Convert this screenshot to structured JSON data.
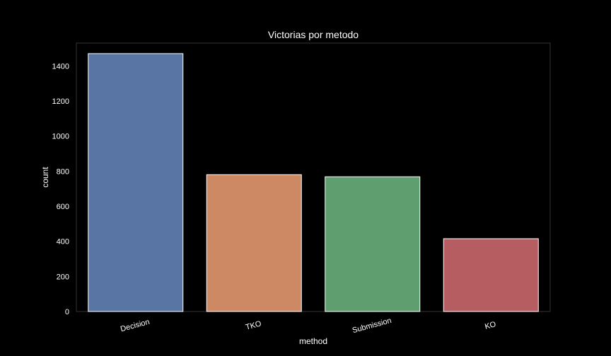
{
  "chart_data": {
    "type": "bar",
    "title": "Victorias por metodo",
    "xlabel": "method",
    "ylabel": "count",
    "categories": [
      "Decision",
      "TKO",
      "Submission",
      "KO"
    ],
    "values": [
      1470,
      780,
      768,
      415
    ],
    "colors": [
      "#5875a4",
      "#cc8963",
      "#5f9e6e",
      "#b55d60"
    ],
    "ylim": [
      0,
      1530
    ],
    "yticks": [
      0,
      200,
      400,
      600,
      800,
      1000,
      1200,
      1400
    ],
    "grid": false,
    "legend": "none",
    "background": "#000000",
    "frame_color": "#333333"
  }
}
